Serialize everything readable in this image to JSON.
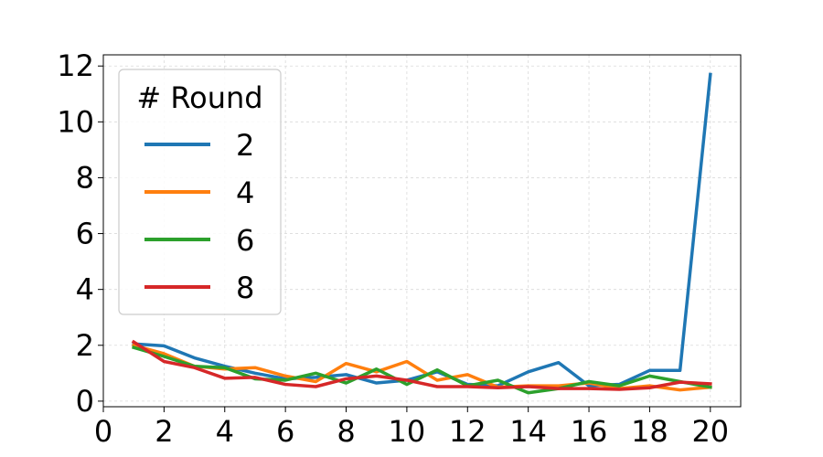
{
  "chart_data": {
    "type": "line",
    "title": "",
    "xlabel": "",
    "ylabel": "",
    "xlim": [
      0,
      21
    ],
    "ylim": [
      -0.2,
      12.4
    ],
    "x_ticks": [
      0,
      2,
      4,
      6,
      8,
      10,
      12,
      14,
      16,
      18,
      20
    ],
    "y_ticks": [
      0,
      2,
      4,
      6,
      8,
      10,
      12
    ],
    "x_tick_labels": [
      "0",
      "2",
      "4",
      "6",
      "8",
      "10",
      "12",
      "14",
      "16",
      "18",
      "20"
    ],
    "y_tick_labels": [
      "0",
      "2",
      "4",
      "6",
      "8",
      "10",
      "12"
    ],
    "grid": true,
    "legend": {
      "title": "# Round",
      "placement": "upper-left"
    },
    "x": [
      1,
      2,
      3,
      4,
      5,
      6,
      7,
      8,
      9,
      10,
      11,
      12,
      13,
      14,
      15,
      16,
      17,
      18,
      19,
      20
    ],
    "series": [
      {
        "name": "2",
        "color": "#1f77b4",
        "values": [
          2.05,
          1.98,
          1.55,
          1.25,
          1.0,
          0.8,
          0.85,
          0.95,
          0.65,
          0.75,
          1.05,
          0.6,
          0.55,
          1.05,
          1.38,
          0.55,
          0.6,
          1.1,
          1.1,
          11.7
        ]
      },
      {
        "name": "4",
        "color": "#ff7f0e",
        "values": [
          2.0,
          1.7,
          1.25,
          1.15,
          1.2,
          0.9,
          0.7,
          1.35,
          1.05,
          1.42,
          0.75,
          0.95,
          0.5,
          0.55,
          0.55,
          0.65,
          0.45,
          0.55,
          0.4,
          0.5
        ]
      },
      {
        "name": "6",
        "color": "#2ca02c",
        "values": [
          1.92,
          1.6,
          1.25,
          1.2,
          0.8,
          0.75,
          1.0,
          0.65,
          1.15,
          0.6,
          1.12,
          0.55,
          0.75,
          0.3,
          0.45,
          0.7,
          0.55,
          0.9,
          0.7,
          0.5
        ]
      },
      {
        "name": "8",
        "color": "#d62728",
        "values": [
          2.12,
          1.42,
          1.2,
          0.82,
          0.85,
          0.6,
          0.52,
          0.8,
          0.9,
          0.75,
          0.52,
          0.52,
          0.48,
          0.52,
          0.45,
          0.45,
          0.42,
          0.48,
          0.68,
          0.62
        ]
      }
    ]
  }
}
